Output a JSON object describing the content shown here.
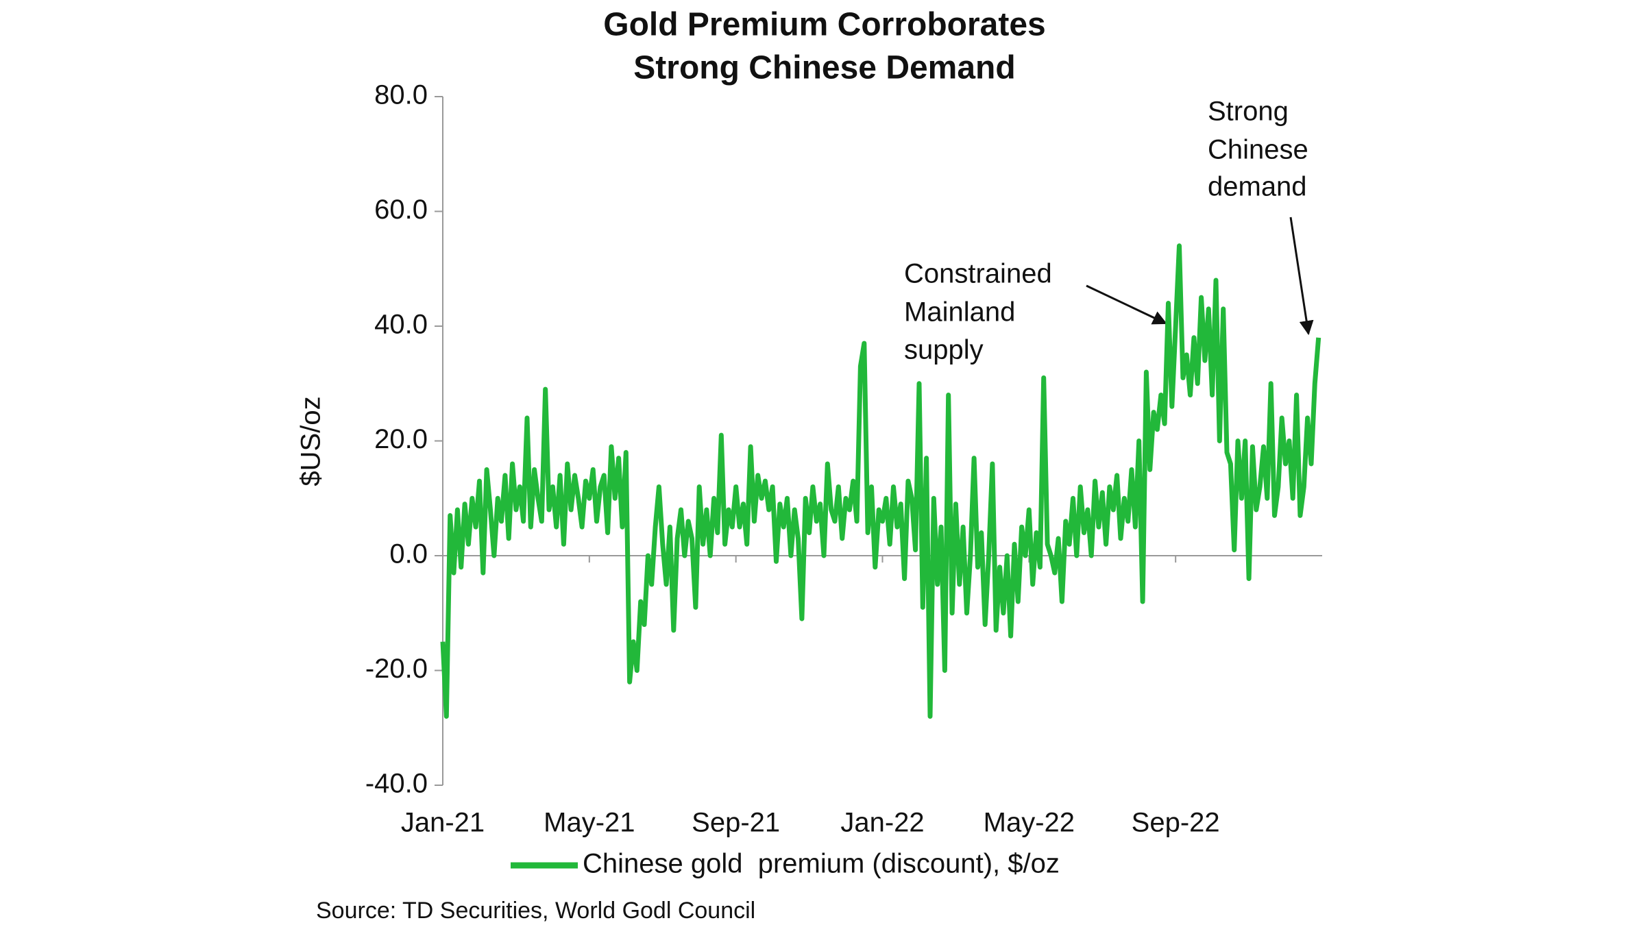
{
  "chart_data": {
    "type": "line",
    "title": [
      "Gold Premium Corroborates",
      "Strong Chinese Demand"
    ],
    "y_label": "$US/oz",
    "source": "Source: TD Securities, World Godl Council",
    "annotations": [
      {
        "text": [
          "Constrained",
          "Mainland",
          "supply"
        ]
      },
      {
        "text": [
          "Strong",
          "Chinese",
          "demand"
        ]
      }
    ],
    "x": [
      0,
      0.1,
      0.2,
      0.3,
      0.4,
      0.5,
      0.6,
      0.7,
      0.8,
      0.9,
      1,
      1.1,
      1.2,
      1.3,
      1.4,
      1.5,
      1.6,
      1.7,
      1.8,
      1.9,
      2,
      2.1,
      2.2,
      2.3,
      2.4,
      2.5,
      2.6,
      2.7,
      2.8,
      2.9,
      3,
      3.1,
      3.2,
      3.3,
      3.4,
      3.5,
      3.6,
      3.7,
      3.8,
      3.9,
      4,
      4.1,
      4.2,
      4.3,
      4.4,
      4.5,
      4.6,
      4.7,
      4.8,
      4.9,
      5,
      5.1,
      5.2,
      5.3,
      5.4,
      5.5,
      5.6,
      5.7,
      5.8,
      5.9,
      6,
      6.1,
      6.2,
      6.3,
      6.4,
      6.5,
      6.6,
      6.7,
      6.8,
      6.9,
      7,
      7.1,
      7.2,
      7.3,
      7.4,
      7.5,
      7.6,
      7.7,
      7.8,
      7.9,
      8,
      8.1,
      8.2,
      8.3,
      8.4,
      8.5,
      8.6,
      8.7,
      8.8,
      8.9,
      9,
      9.1,
      9.2,
      9.3,
      9.4,
      9.5,
      9.6,
      9.7,
      9.8,
      9.9,
      10,
      10.1,
      10.2,
      10.3,
      10.4,
      10.5,
      10.6,
      10.7,
      10.8,
      10.9,
      11,
      11.1,
      11.2,
      11.3,
      11.4,
      11.5,
      11.6,
      11.7,
      11.8,
      11.9,
      12,
      12.1,
      12.2,
      12.3,
      12.4,
      12.5,
      12.6,
      12.7,
      12.8,
      12.9,
      13,
      13.1,
      13.2,
      13.3,
      13.4,
      13.5,
      13.6,
      13.7,
      13.8,
      13.9,
      14,
      14.1,
      14.2,
      14.3,
      14.4,
      14.5,
      14.6,
      14.7,
      14.8,
      14.9,
      15,
      15.1,
      15.2,
      15.3,
      15.4,
      15.5,
      15.6,
      15.7,
      15.8,
      15.9,
      16,
      16.1,
      16.2,
      16.3,
      16.4,
      16.5,
      16.6,
      16.7,
      16.8,
      16.9,
      17,
      17.1,
      17.2,
      17.3,
      17.4,
      17.5,
      17.6,
      17.7,
      17.8,
      17.9,
      18,
      18.1,
      18.2,
      18.3,
      18.4,
      18.5,
      18.6,
      18.7,
      18.8,
      18.9,
      19,
      19.1,
      19.2,
      19.3,
      19.4,
      19.5,
      19.6,
      19.7,
      19.8,
      19.9,
      20,
      20.1,
      20.2,
      20.3,
      20.4,
      20.5,
      20.6,
      20.7,
      20.8,
      20.9,
      21,
      21.1,
      21.2,
      21.3,
      21.4,
      21.5,
      21.6,
      21.7,
      21.8,
      21.9,
      22,
      22.1,
      22.2,
      22.3,
      22.4,
      22.5,
      22.6,
      22.7,
      22.8,
      22.9,
      23,
      23.1,
      23.2,
      23.3,
      23.4,
      23.5,
      23.6,
      23.7,
      23.8,
      23.9
    ],
    "series": [
      {
        "name": "Chinese gold  premium (discount), $/oz",
        "color": "#22b83a",
        "values": [
          -15,
          -28,
          7,
          -3,
          8,
          -2,
          9,
          2,
          10,
          5,
          13,
          -3,
          15,
          8,
          0,
          10,
          6,
          14,
          3,
          16,
          8,
          12,
          6,
          24,
          5,
          15,
          10,
          6,
          29,
          8,
          12,
          5,
          14,
          2,
          16,
          8,
          14,
          10,
          5,
          13,
          10,
          15,
          6,
          12,
          14,
          4,
          19,
          10,
          17,
          5,
          18,
          -22,
          -15,
          -20,
          -8,
          -12,
          0,
          -5,
          5,
          12,
          2,
          -5,
          5,
          -13,
          3,
          8,
          0,
          6,
          3,
          -9,
          12,
          2,
          8,
          0,
          10,
          4,
          21,
          2,
          8,
          5,
          12,
          5,
          9,
          2,
          19,
          6,
          14,
          10,
          13,
          8,
          12,
          -1,
          9,
          5,
          10,
          0,
          8,
          3,
          -11,
          10,
          4,
          12,
          6,
          9,
          0,
          16,
          8,
          6,
          12,
          3,
          10,
          8,
          13,
          6,
          33,
          37,
          4,
          12,
          -2,
          8,
          6,
          10,
          2,
          12,
          5,
          9,
          -4,
          13,
          10,
          1,
          30,
          -9,
          17,
          -28,
          10,
          -5,
          5,
          -20,
          28,
          -10,
          9,
          -5,
          5,
          -10,
          0,
          17,
          -2,
          4,
          -12,
          0,
          16,
          -13,
          -2,
          -10,
          0,
          -14,
          2,
          -8,
          5,
          0,
          8,
          -5,
          4,
          -2,
          31,
          2,
          0,
          -3,
          3,
          -8,
          6,
          2,
          10,
          0,
          12,
          4,
          8,
          0,
          13,
          5,
          11,
          2,
          12,
          8,
          14,
          3,
          10,
          6,
          15,
          5,
          20,
          -8,
          32,
          15,
          25,
          22,
          28,
          23,
          44,
          26,
          40,
          54,
          31,
          35,
          28,
          38,
          30,
          45,
          34,
          43,
          28,
          48,
          20,
          43,
          18,
          16,
          1,
          20,
          10,
          20,
          -4,
          19,
          8,
          12,
          19,
          10,
          30,
          7,
          12,
          24,
          16,
          20,
          10,
          28,
          7,
          12,
          24,
          16,
          30,
          38
        ]
      }
    ],
    "xlim": [
      0,
      24
    ],
    "xticks": [
      {
        "value": 0,
        "label": "Jan-21"
      },
      {
        "value": 4,
        "label": "May-21"
      },
      {
        "value": 8,
        "label": "Sep-21"
      },
      {
        "value": 12,
        "label": "Jan-22"
      },
      {
        "value": 16,
        "label": "May-22"
      },
      {
        "value": 20,
        "label": "Sep-22"
      }
    ],
    "ylim": [
      -40,
      80
    ],
    "yticks": [
      {
        "value": -40,
        "label": "-40.0"
      },
      {
        "value": -20,
        "label": "-20.0"
      },
      {
        "value": 0,
        "label": "0.0"
      },
      {
        "value": 20,
        "label": "20.0"
      },
      {
        "value": 40,
        "label": "40.0"
      },
      {
        "value": 60,
        "label": "60.0"
      },
      {
        "value": 80,
        "label": "80.0"
      }
    ],
    "grid": false,
    "legend": "bottom"
  }
}
